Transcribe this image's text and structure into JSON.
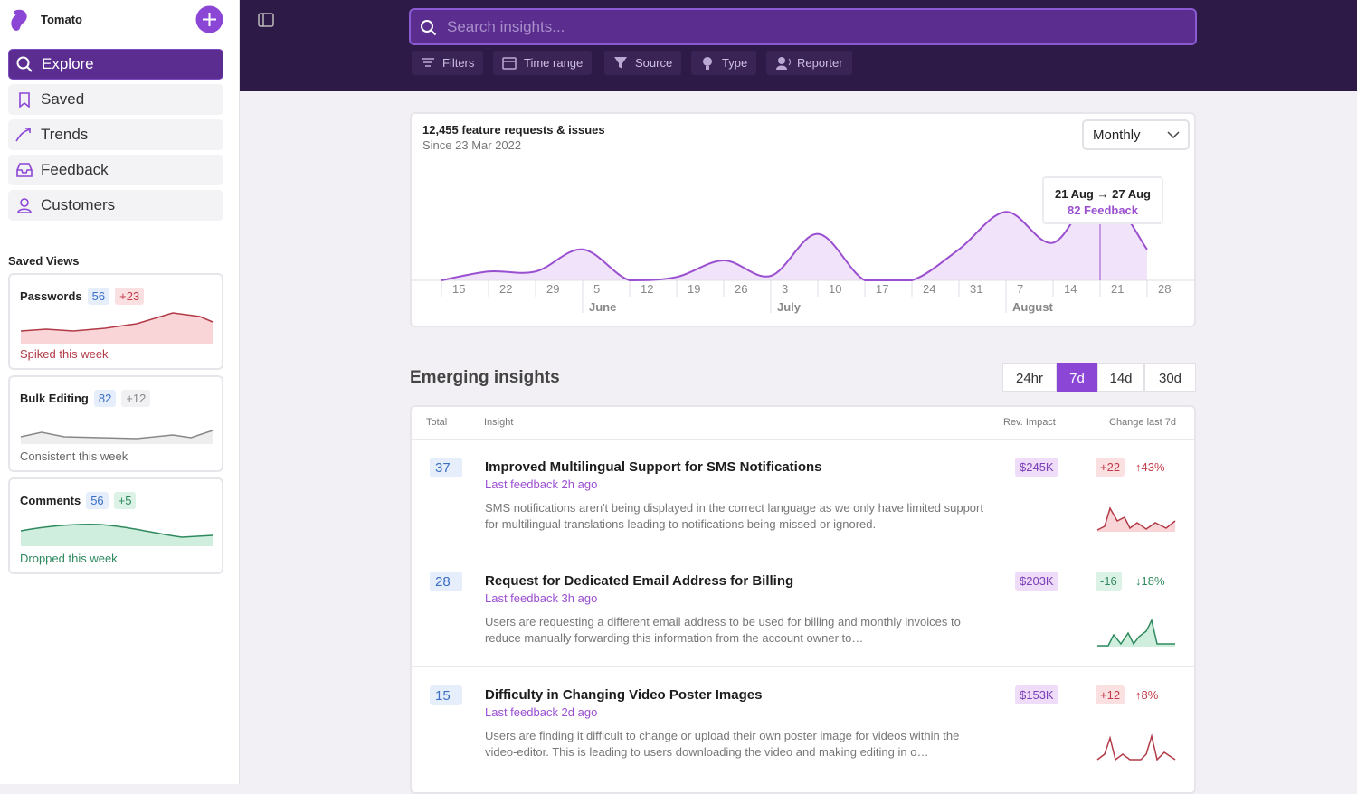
{
  "sidebar": {
    "workspace": "Tomato",
    "nav": [
      "Explore",
      "Saved",
      "Trends",
      "Feedback",
      "Customers"
    ],
    "saved_views_title": "Saved Views",
    "saved_views": [
      {
        "name": "Passwords",
        "count": "56",
        "change": "+23",
        "status": "Spiked this week"
      },
      {
        "name": "Bulk Editing",
        "count": "82",
        "change": "+12",
        "status": "Consistent this week"
      },
      {
        "name": "Comments",
        "count": "56",
        "change": "+5",
        "status": "Dropped this week"
      }
    ]
  },
  "search": {
    "placeholder": "Search insights..."
  },
  "filters": [
    "Filters",
    "Time range",
    "Source",
    "Type",
    "Reporter"
  ],
  "overview": {
    "title": "12,455 feature requests & issues",
    "subtitle": "Since 23 Mar 2022",
    "period": "Monthly",
    "tooltip": {
      "range": "21 Aug → 27 Aug",
      "value": "82 Feedback"
    },
    "ticks": [
      "15",
      "22",
      "29",
      "5",
      "12",
      "19",
      "26",
      "3",
      "10",
      "17",
      "24",
      "31",
      "7",
      "14",
      "21",
      "28"
    ],
    "months": [
      "June",
      "July",
      "August"
    ],
    "values": [
      0,
      8,
      8,
      28,
      0,
      3,
      18,
      4,
      42,
      0,
      0,
      28,
      62,
      34,
      82,
      28
    ],
    "ylim": [
      0,
      90
    ],
    "color": "#9a4fd0"
  },
  "insights": {
    "title": "Emerging insights",
    "ranges": [
      "24hr",
      "7d",
      "14d",
      "30d"
    ],
    "active_range": "7d",
    "columns": [
      "Total",
      "Insight",
      "Rev. Impact",
      "Change last 7d"
    ],
    "rows": [
      {
        "total": "37",
        "title": "Improved Multilingual Support for SMS Notifications",
        "last": "Last feedback 2h ago",
        "desc": "SMS notifications aren't being displayed in the correct language as we only have limited support for multilingual translations leading to notifications being missed or ignored.",
        "revenue": "$245K",
        "change": "+22",
        "pct": "↑43%"
      },
      {
        "total": "28",
        "title": "Request for Dedicated Email Address for Billing",
        "last": "Last feedback 3h ago",
        "desc": "Users are requesting a different email address to be used for billing and monthly invoices to reduce manually forwarding this information from the account owner to…",
        "revenue": "$203K",
        "change": "-16",
        "pct": "↓18%"
      },
      {
        "total": "15",
        "title": "Difficulty in Changing Video Poster Images",
        "last": "Last feedback 2d ago",
        "desc": "Users are finding it difficult to change or upload their own poster image for videos within the video-editor. This is leading to users downloading the video and making editing in o…",
        "revenue": "$153K",
        "change": "+12",
        "pct": "↑8%"
      }
    ]
  }
}
